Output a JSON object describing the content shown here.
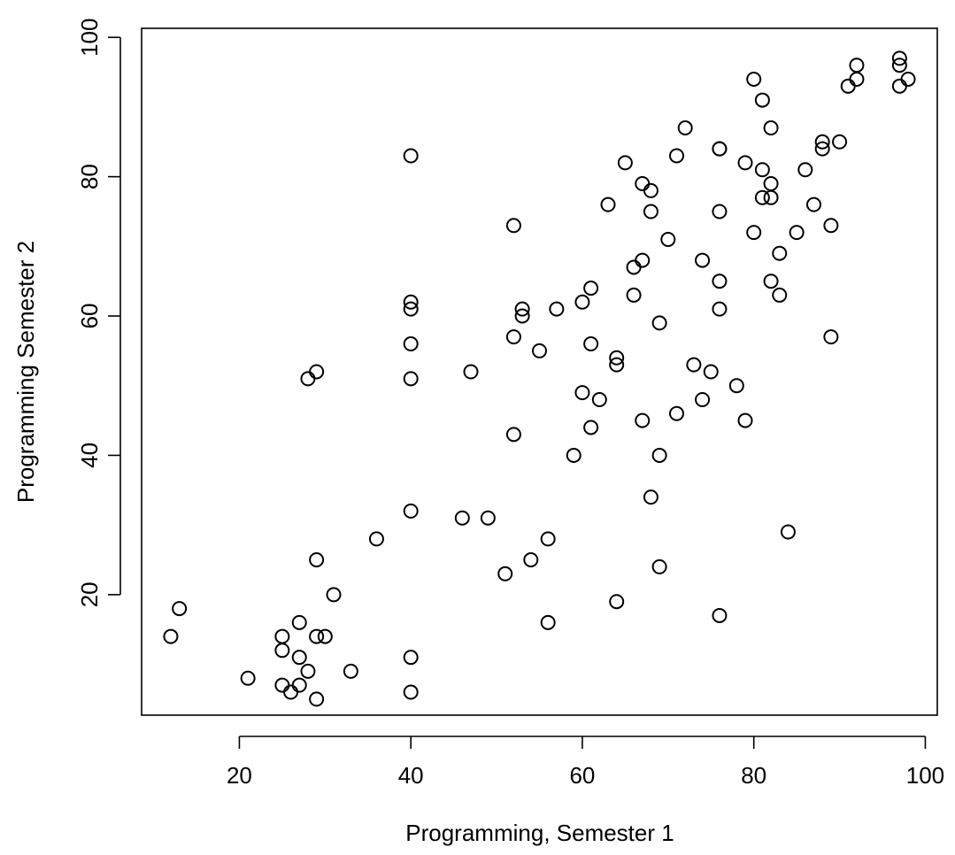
{
  "chart_data": {
    "type": "scatter",
    "xlabel": "Programming, Semester 1",
    "ylabel": "Programming Semester 2",
    "xlim": [
      8.6,
      101.4
    ],
    "ylim": [
      2.7,
      101.3
    ],
    "x_ticks": [
      20,
      40,
      60,
      80,
      100
    ],
    "y_ticks": [
      20,
      40,
      60,
      80,
      100
    ],
    "grid": false,
    "point_style": "open-circle",
    "points": [
      [
        12,
        14
      ],
      [
        13,
        18
      ],
      [
        21,
        8
      ],
      [
        25,
        14
      ],
      [
        25,
        12
      ],
      [
        25,
        7
      ],
      [
        26,
        6
      ],
      [
        27,
        16
      ],
      [
        27,
        11
      ],
      [
        27,
        7
      ],
      [
        28,
        51
      ],
      [
        28,
        9
      ],
      [
        29,
        52
      ],
      [
        29,
        25
      ],
      [
        29,
        14
      ],
      [
        29,
        5
      ],
      [
        30,
        14
      ],
      [
        31,
        20
      ],
      [
        33,
        9
      ],
      [
        36,
        28
      ],
      [
        40,
        83
      ],
      [
        40,
        62
      ],
      [
        40,
        61
      ],
      [
        40,
        56
      ],
      [
        40,
        51
      ],
      [
        40,
        32
      ],
      [
        40,
        11
      ],
      [
        40,
        6
      ],
      [
        46,
        31
      ],
      [
        47,
        52
      ],
      [
        49,
        31
      ],
      [
        51,
        23
      ],
      [
        52,
        73
      ],
      [
        52,
        57
      ],
      [
        52,
        43
      ],
      [
        53,
        61
      ],
      [
        53,
        60
      ],
      [
        54,
        25
      ],
      [
        55,
        55
      ],
      [
        56,
        28
      ],
      [
        56,
        16
      ],
      [
        57,
        61
      ],
      [
        59,
        40
      ],
      [
        60,
        62
      ],
      [
        60,
        49
      ],
      [
        61,
        64
      ],
      [
        61,
        56
      ],
      [
        61,
        44
      ],
      [
        62,
        48
      ],
      [
        63,
        76
      ],
      [
        64,
        54
      ],
      [
        64,
        53
      ],
      [
        64,
        19
      ],
      [
        65,
        82
      ],
      [
        66,
        67
      ],
      [
        66,
        63
      ],
      [
        67,
        79
      ],
      [
        67,
        68
      ],
      [
        67,
        45
      ],
      [
        68,
        78
      ],
      [
        68,
        75
      ],
      [
        68,
        34
      ],
      [
        69,
        59
      ],
      [
        69,
        40
      ],
      [
        69,
        24
      ],
      [
        70,
        71
      ],
      [
        71,
        83
      ],
      [
        71,
        46
      ],
      [
        72,
        87
      ],
      [
        73,
        53
      ],
      [
        74,
        68
      ],
      [
        74,
        48
      ],
      [
        75,
        52
      ],
      [
        76,
        84
      ],
      [
        76,
        84
      ],
      [
        76,
        75
      ],
      [
        76,
        65
      ],
      [
        76,
        61
      ],
      [
        76,
        17
      ],
      [
        78,
        50
      ],
      [
        79,
        82
      ],
      [
        79,
        45
      ],
      [
        80,
        94
      ],
      [
        80,
        72
      ],
      [
        81,
        91
      ],
      [
        81,
        81
      ],
      [
        81,
        77
      ],
      [
        82,
        87
      ],
      [
        82,
        79
      ],
      [
        82,
        77
      ],
      [
        82,
        65
      ],
      [
        83,
        69
      ],
      [
        83,
        63
      ],
      [
        84,
        29
      ],
      [
        85,
        72
      ],
      [
        86,
        81
      ],
      [
        87,
        76
      ],
      [
        88,
        85
      ],
      [
        88,
        84
      ],
      [
        89,
        73
      ],
      [
        89,
        57
      ],
      [
        90,
        85
      ],
      [
        91,
        93
      ],
      [
        92,
        96
      ],
      [
        92,
        94
      ],
      [
        97,
        97
      ],
      [
        97,
        96
      ],
      [
        97,
        93
      ],
      [
        98,
        94
      ]
    ]
  }
}
